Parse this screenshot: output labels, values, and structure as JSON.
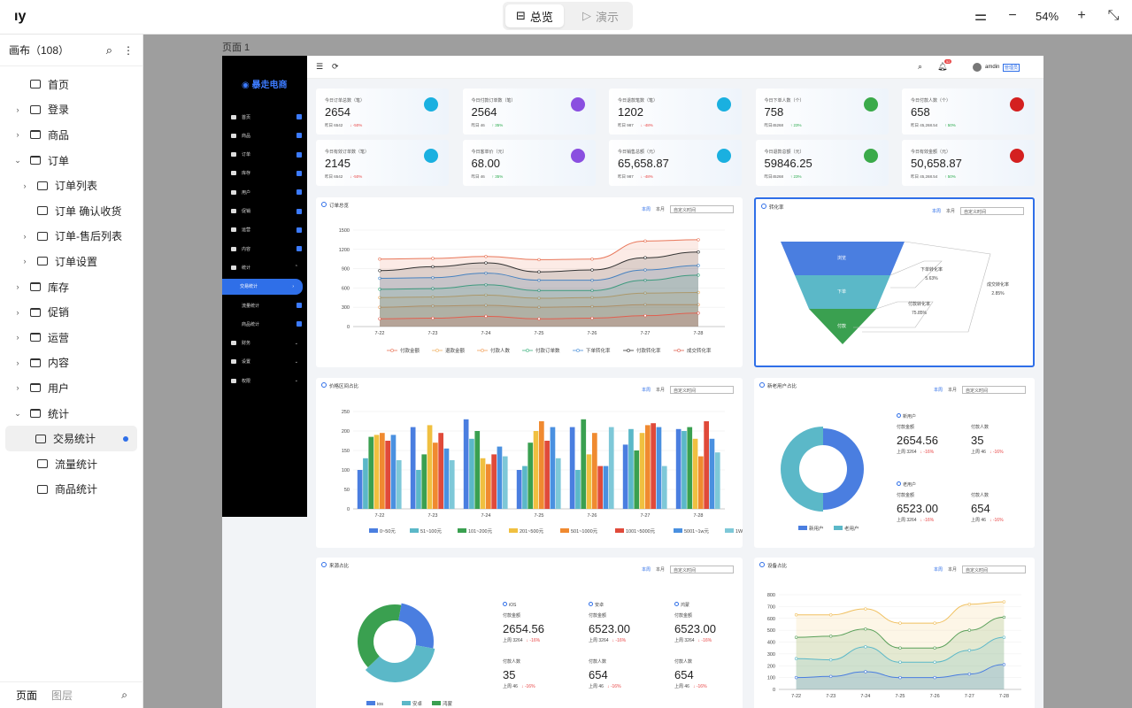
{
  "topbar": {
    "modes": [
      {
        "label": "总览"
      },
      {
        "label": "演示"
      }
    ],
    "zoom": "54%"
  },
  "sidebar": {
    "title": "画布（108）",
    "tabs": [
      "页面",
      "图层"
    ],
    "items": [
      {
        "label": "首页",
        "caret": "",
        "type": "page",
        "indent": 0
      },
      {
        "label": "登录",
        "caret": "›",
        "type": "page",
        "indent": 0
      },
      {
        "label": "商品",
        "caret": "›",
        "type": "folder",
        "indent": 0
      },
      {
        "label": "订单",
        "caret": "⌄",
        "type": "folder",
        "indent": 0
      },
      {
        "label": "订单列表",
        "caret": "›",
        "type": "page",
        "indent": 1
      },
      {
        "label": "订单 确认收货",
        "caret": "",
        "type": "page",
        "indent": 1
      },
      {
        "label": "订单-售后列表",
        "caret": "›",
        "type": "page",
        "indent": 1
      },
      {
        "label": "订单设置",
        "caret": "›",
        "type": "page",
        "indent": 1
      },
      {
        "label": "库存",
        "caret": "›",
        "type": "folder",
        "indent": 0
      },
      {
        "label": "促销",
        "caret": "›",
        "type": "folder",
        "indent": 0
      },
      {
        "label": "运营",
        "caret": "›",
        "type": "folder",
        "indent": 0
      },
      {
        "label": "内容",
        "caret": "›",
        "type": "folder",
        "indent": 0
      },
      {
        "label": "用户",
        "caret": "›",
        "type": "folder",
        "indent": 0
      },
      {
        "label": "统计",
        "caret": "⌄",
        "type": "folder",
        "indent": 0
      },
      {
        "label": "交易统计",
        "caret": "",
        "type": "page",
        "indent": 1,
        "selected": true
      },
      {
        "label": "流量统计",
        "caret": "",
        "type": "page",
        "indent": 1
      },
      {
        "label": "商品统计",
        "caret": "",
        "type": "page",
        "indent": 1
      }
    ]
  },
  "canvas": {
    "page_label": "页面 1"
  },
  "app": {
    "brand": "暴走电商",
    "user": "amdin",
    "role": "管理员",
    "bell_count": "52",
    "nav": [
      {
        "label": "首页",
        "badge": true
      },
      {
        "label": "商品",
        "badge": true
      },
      {
        "label": "订单",
        "badge": true
      },
      {
        "label": "库存",
        "badge": true
      },
      {
        "label": "用户",
        "badge": true
      },
      {
        "label": "促销",
        "badge": true
      },
      {
        "label": "运营",
        "badge": true
      },
      {
        "label": "内容",
        "badge": true
      },
      {
        "label": "统计",
        "arrow": "⌃"
      },
      {
        "label": "交易统计",
        "active": true,
        "arrow": "›"
      },
      {
        "label": "流量统计",
        "sub": true,
        "badge": true
      },
      {
        "label": "商品统计",
        "sub": true,
        "badge": true
      },
      {
        "label": "财务",
        "arrow": "⌄"
      },
      {
        "label": "设置",
        "arrow": "⌄"
      },
      {
        "label": "权限",
        "arrow": "⌄"
      }
    ],
    "kpis": [
      {
        "label": "今日订单总数（笔）",
        "value": "2654",
        "yday": "昨日 6542",
        "pct": "-50%",
        "dir": "down",
        "color": "#1ab0e0"
      },
      {
        "label": "今日付款订单数（笔）",
        "value": "2564",
        "yday": "昨日 46",
        "pct": "35%",
        "dir": "up",
        "color": "#8a4fe0"
      },
      {
        "label": "今日退款笔数（笔）",
        "value": "1202",
        "yday": "昨日 987",
        "pct": "-48%",
        "dir": "down",
        "color": "#1ab0e0"
      },
      {
        "label": "今日下单人数（个）",
        "value": "758",
        "yday": "昨日45268",
        "pct": "23%",
        "dir": "up",
        "color": "#3aaa4a"
      },
      {
        "label": "今日付款人数（个）",
        "value": "658",
        "yday": "昨日 45,268.54",
        "pct": "50%",
        "dir": "up",
        "color": "#d42020"
      },
      {
        "label": "今日有效订单数（笔）",
        "value": "2145",
        "yday": "昨日 6542",
        "pct": "-50%",
        "dir": "down",
        "color": "#1ab0e0"
      },
      {
        "label": "今日客单价（元）",
        "value": "68.00",
        "yday": "昨日 46",
        "pct": "35%",
        "dir": "up",
        "color": "#8a4fe0"
      },
      {
        "label": "今日销售总额（元）",
        "value": "65,658.87",
        "yday": "昨日 987",
        "pct": "-48%",
        "dir": "down",
        "color": "#1ab0e0"
      },
      {
        "label": "今日退款总额（元）",
        "value": "59846.25",
        "yday": "昨日45268",
        "pct": "23%",
        "dir": "up",
        "color": "#3aaa4a"
      },
      {
        "label": "今日有效金额（元）",
        "value": "50,658.87",
        "yday": "昨日 45,268.54",
        "pct": "50%",
        "dir": "up",
        "color": "#d42020"
      }
    ],
    "controls": {
      "week": "本周",
      "month": "本月",
      "range": "自定义时间"
    },
    "panels": {
      "orders": "订单总览",
      "funnel": "转化率",
      "price": "价格区间占比",
      "newold": "新老用户占比",
      "source": "来源占比",
      "device": "设备占比"
    },
    "funnel": {
      "stages": [
        "浏览",
        "下单",
        "付款"
      ],
      "rates": [
        {
          "label": "下单转化率",
          "value": "5.63%"
        },
        {
          "label": "付款转化率",
          "value": "75.85%"
        },
        {
          "label": "成交转化率",
          "value": "2.85%"
        }
      ]
    },
    "newold": {
      "legend": [
        "新用户",
        "老用户"
      ],
      "groups": [
        {
          "name": "新用户",
          "amount_label": "付款金额",
          "amount": "2654.56",
          "amount_prev": "上周 3264",
          "amount_pct": "-16%",
          "people_label": "付款人数",
          "people": "35",
          "people_prev": "上周 46",
          "people_pct": "-16%"
        },
        {
          "name": "老用户",
          "amount_label": "付款金额",
          "amount": "6523.00",
          "amount_prev": "上周 3264",
          "amount_pct": "-16%",
          "people_label": "付款人数",
          "people": "654",
          "people_prev": "上周 46",
          "people_pct": "-16%"
        }
      ]
    },
    "source": {
      "legend": [
        "ios",
        "安卓",
        "鸿蒙"
      ],
      "groups": [
        {
          "name": "iOS",
          "amount_label": "付款金额",
          "amount": "2654.56",
          "amount_prev": "上周 3264",
          "amount_pct": "-16%",
          "people_label": "付款人数",
          "people": "35",
          "people_prev": "上周 46",
          "people_pct": "-16%"
        },
        {
          "name": "安卓",
          "amount_label": "付款金额",
          "amount": "6523.00",
          "amount_prev": "上周 3264",
          "amount_pct": "-16%",
          "people_label": "付款人数",
          "people": "654",
          "people_prev": "上周 46",
          "people_pct": "-16%"
        },
        {
          "name": "鸿蒙",
          "amount_label": "付款金额",
          "amount": "6523.00",
          "amount_prev": "上周 3264",
          "amount_pct": "-16%",
          "people_label": "付款人数",
          "people": "654",
          "people_prev": "上周 46",
          "people_pct": "-16%"
        }
      ]
    }
  },
  "chart_data": [
    {
      "type": "area",
      "categories": [
        "7-22",
        "7-23",
        "7-24",
        "7-25",
        "7-26",
        "7-27",
        "7-28"
      ],
      "ylim": [
        0,
        1500
      ],
      "yticks": [
        0,
        300,
        600,
        900,
        1200,
        1500
      ],
      "series": [
        {
          "name": "付款金额",
          "color": "#e8775a",
          "values": [
            1050,
            1060,
            1090,
            1040,
            1050,
            1330,
            1350
          ]
        },
        {
          "name": "退款金额",
          "color": "#f0b060",
          "values": [
            450,
            460,
            490,
            440,
            450,
            520,
            530
          ]
        },
        {
          "name": "付款人数",
          "color": "#f2a05a",
          "values": [
            300,
            320,
            330,
            300,
            310,
            340,
            340
          ]
        },
        {
          "name": "付款订单数",
          "color": "#3fb27f",
          "values": [
            580,
            590,
            650,
            560,
            560,
            720,
            800
          ]
        },
        {
          "name": "下单转化率",
          "color": "#4a90d9",
          "values": [
            750,
            760,
            830,
            720,
            720,
            880,
            950
          ]
        },
        {
          "name": "付款转化率",
          "color": "#333333",
          "values": [
            870,
            930,
            990,
            850,
            880,
            1070,
            1160
          ]
        },
        {
          "name": "成交转化率",
          "color": "#e06050",
          "values": [
            120,
            130,
            160,
            120,
            130,
            170,
            210
          ]
        }
      ]
    },
    {
      "type": "bar",
      "categories": [
        "7-22",
        "7-23",
        "7-24",
        "7-25",
        "7-26",
        "7-27",
        "7-28"
      ],
      "ylim": [
        0,
        250
      ],
      "yticks": [
        0,
        50,
        100,
        150,
        200,
        250
      ],
      "series": [
        {
          "name": "0~50元",
          "color": "#4a7ee0",
          "values": [
            100,
            210,
            230,
            100,
            210,
            165,
            205
          ]
        },
        {
          "name": "51~100元",
          "color": "#5bb8c8",
          "values": [
            130,
            100,
            180,
            110,
            100,
            205,
            200
          ]
        },
        {
          "name": "101~200元",
          "color": "#3aa050",
          "values": [
            185,
            140,
            200,
            170,
            230,
            150,
            210
          ]
        },
        {
          "name": "201~500元",
          "color": "#f0c040",
          "values": [
            190,
            215,
            130,
            200,
            140,
            195,
            180
          ]
        },
        {
          "name": "501~1000元",
          "color": "#f08a30",
          "values": [
            195,
            170,
            115,
            225,
            195,
            215,
            135
          ]
        },
        {
          "name": "1001~5000元",
          "color": "#e04a3a",
          "values": [
            175,
            195,
            140,
            175,
            110,
            220,
            225
          ]
        },
        {
          "name": "5001~1w元",
          "color": "#4a90e0",
          "values": [
            190,
            155,
            160,
            210,
            110,
            210,
            180
          ]
        },
        {
          "name": "1W以上",
          "color": "#7ec8d8",
          "values": [
            125,
            125,
            135,
            130,
            210,
            110,
            145
          ]
        }
      ]
    },
    {
      "type": "pie",
      "title": "新老用户占比",
      "series": [
        {
          "name": "新用户",
          "value": 50,
          "color": "#4a7ee0"
        },
        {
          "name": "老用户",
          "value": 50,
          "color": "#5bb8c8"
        }
      ]
    },
    {
      "type": "pie",
      "title": "来源占比",
      "series": [
        {
          "name": "ios",
          "value": 25,
          "color": "#4a7ee0"
        },
        {
          "name": "安卓",
          "value": 35,
          "color": "#5bb8c8"
        },
        {
          "name": "鸿蒙",
          "value": 40,
          "color": "#3aa050"
        }
      ]
    },
    {
      "type": "area",
      "categories": [
        "7-22",
        "7-23",
        "7-24",
        "7-25",
        "7-26",
        "7-27",
        "7-28"
      ],
      "ylim": [
        0,
        800
      ],
      "yticks": [
        0,
        100,
        200,
        300,
        400,
        500,
        600,
        700,
        800
      ],
      "series": [
        {
          "name": "",
          "color": "#f0c060",
          "values": [
            630,
            630,
            680,
            560,
            560,
            720,
            740
          ]
        },
        {
          "name": "",
          "color": "#5aa05a",
          "values": [
            440,
            450,
            510,
            350,
            350,
            500,
            610
          ]
        },
        {
          "name": "",
          "color": "#5bb8c8",
          "values": [
            260,
            250,
            360,
            230,
            230,
            330,
            440
          ]
        },
        {
          "name": "",
          "color": "#4a7ee0",
          "values": [
            100,
            110,
            150,
            100,
            100,
            130,
            210
          ]
        }
      ]
    }
  ]
}
